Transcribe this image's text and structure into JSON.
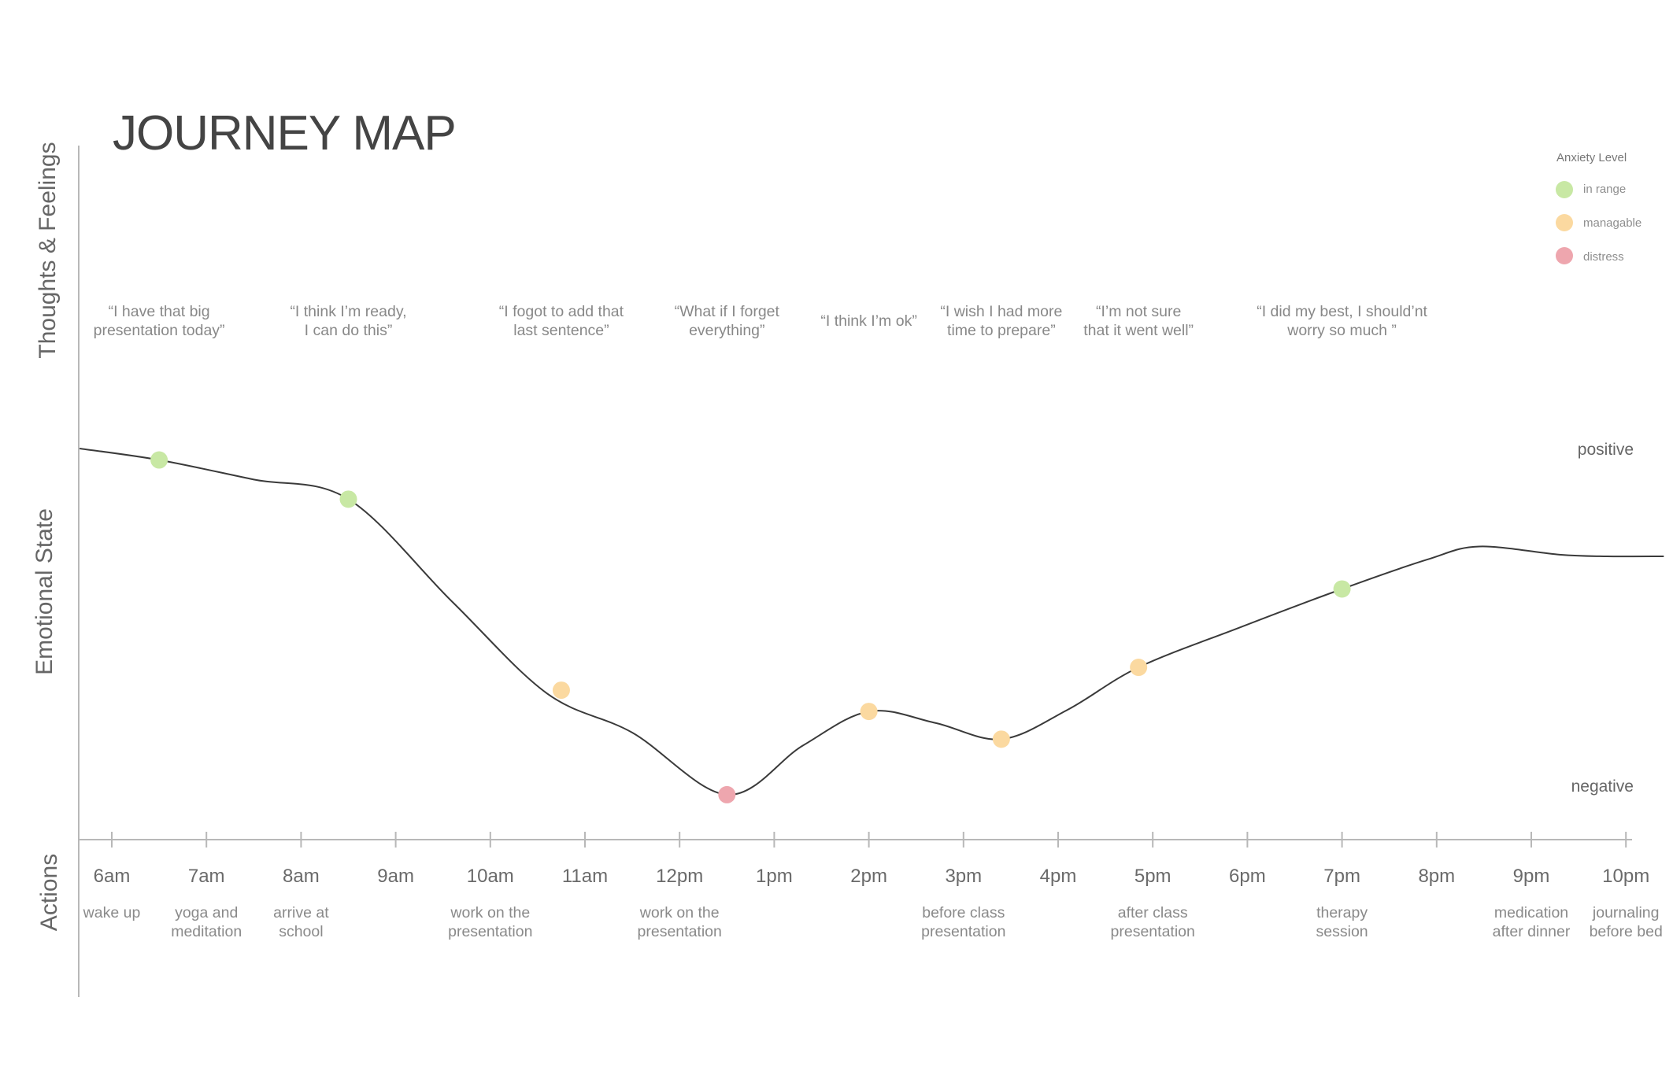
{
  "title": "JOURNEY MAP",
  "sections": {
    "thoughts": "Thoughts & Feelings",
    "emotional": "Emotional State",
    "actions": "Actions"
  },
  "scale": {
    "positive": "positive",
    "negative": "negative"
  },
  "legend": {
    "title": "Anxiety Level",
    "items": [
      {
        "key": "in_range",
        "label": "in range",
        "color": "#c8e8a4"
      },
      {
        "key": "managable",
        "label": "managable",
        "color": "#fbd9a0"
      },
      {
        "key": "distress",
        "label": "distress",
        "color": "#eea6ae"
      }
    ]
  },
  "line_color": "#3a3a3a",
  "axis_color": "#b8b8b8",
  "chart_data": {
    "type": "line",
    "x": [
      "6am",
      "7am",
      "8am",
      "9am",
      "10am",
      "11am",
      "12pm",
      "1pm",
      "2pm",
      "3pm",
      "4pm",
      "5pm",
      "6pm",
      "7pm",
      "8pm",
      "9pm",
      "10pm"
    ],
    "y_range": [
      "negative",
      "positive"
    ],
    "curve": [
      {
        "t": 5.66,
        "v": 1.0
      },
      {
        "t": 6.5,
        "v": 0.965
      },
      {
        "t": 7.5,
        "v": 0.905
      },
      {
        "t": 8.5,
        "v": 0.845
      },
      {
        "t": 9.6,
        "v": 0.53
      },
      {
        "t": 10.6,
        "v": 0.25
      },
      {
        "t": 11.5,
        "v": 0.13
      },
      {
        "t": 12.5,
        "v": -0.06
      },
      {
        "t": 13.3,
        "v": 0.09
      },
      {
        "t": 14.0,
        "v": 0.195
      },
      {
        "t": 14.7,
        "v": 0.16
      },
      {
        "t": 15.4,
        "v": 0.11
      },
      {
        "t": 16.1,
        "v": 0.2
      },
      {
        "t": 16.85,
        "v": 0.33
      },
      {
        "t": 17.9,
        "v": 0.45
      },
      {
        "t": 19.0,
        "v": 0.57
      },
      {
        "t": 19.9,
        "v": 0.66
      },
      {
        "t": 20.45,
        "v": 0.7
      },
      {
        "t": 21.3,
        "v": 0.675
      },
      {
        "t": 21.8,
        "v": 0.67
      },
      {
        "t": 22.4,
        "v": 0.67
      }
    ],
    "moments": [
      {
        "t": 6.5,
        "v": 0.965,
        "level": "in_range",
        "quote": [
          "“I have that big",
          "presentation today”"
        ]
      },
      {
        "t": 8.5,
        "v": 0.845,
        "level": "in_range",
        "quote": [
          "“I think I’m ready,",
          "I can do this”"
        ]
      },
      {
        "t": 10.75,
        "v": 0.26,
        "level": "managable",
        "quote": [
          "“I fogot to add  that",
          "last sentence”"
        ]
      },
      {
        "t": 12.5,
        "v": -0.06,
        "level": "distress",
        "quote": [
          "“What if I forget",
          "everything”"
        ]
      },
      {
        "t": 14.0,
        "v": 0.195,
        "level": "managable",
        "quote": [
          "“I think I’m ok”"
        ]
      },
      {
        "t": 15.4,
        "v": 0.11,
        "level": "managable",
        "quote": [
          "“I wish I had more",
          "time to prepare”"
        ]
      },
      {
        "t": 16.85,
        "v": 0.33,
        "level": "managable",
        "quote": [
          "“I’m not sure",
          "that it went well”"
        ]
      },
      {
        "t": 19.0,
        "v": 0.57,
        "level": "in_range",
        "quote": [
          "“I did my best, I should’nt",
          "worry so much ”"
        ]
      }
    ],
    "actions": [
      {
        "t": 6,
        "lines": [
          "wake up"
        ]
      },
      {
        "t": 7,
        "lines": [
          "yoga and",
          "meditation"
        ]
      },
      {
        "t": 8,
        "lines": [
          "arrive at",
          "school"
        ]
      },
      {
        "t": 10,
        "lines": [
          "work on the",
          "presentation"
        ]
      },
      {
        "t": 12,
        "lines": [
          "work on the",
          "presentation"
        ]
      },
      {
        "t": 15,
        "lines": [
          "before class",
          "presentation"
        ]
      },
      {
        "t": 17,
        "lines": [
          "after class",
          "presentation"
        ]
      },
      {
        "t": 19,
        "lines": [
          "therapy",
          "session"
        ]
      },
      {
        "t": 21,
        "lines": [
          "medication",
          "after dinner"
        ]
      },
      {
        "t": 22,
        "lines": [
          "journaling",
          "before bed"
        ]
      }
    ]
  }
}
